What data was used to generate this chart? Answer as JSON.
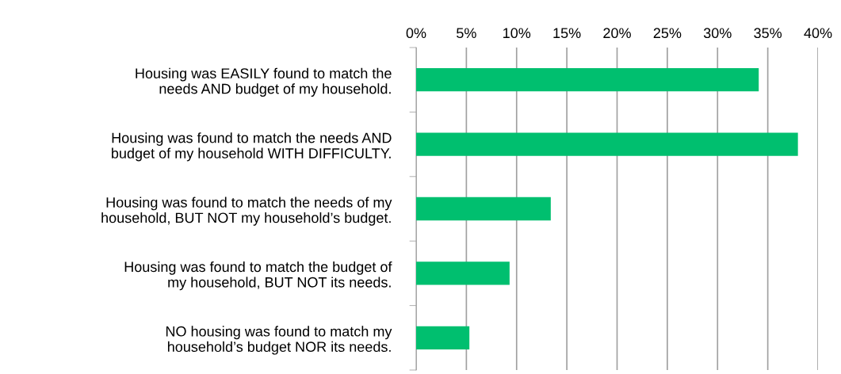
{
  "chart_data": {
    "type": "bar",
    "orientation": "horizontal",
    "categories": [
      "Housing was EASILY found to match the\nneeds AND budget of my household.",
      "Housing was found to match the needs AND\nbudget of my household WITH DIFFICULTY.",
      "Housing was found to match the needs of my\nhousehold, BUT NOT my household’s budget.",
      "Housing was found to match the budget of\nmy household, BUT NOT its needs.",
      "NO housing was found to match my\nhousehold’s budget NOR its needs."
    ],
    "values": [
      34.1,
      38.0,
      13.4,
      9.3,
      5.3
    ],
    "color": "#00bf6f",
    "xlim": [
      0,
      40
    ],
    "xticks": [
      {
        "value": 0,
        "label": "0%"
      },
      {
        "value": 5,
        "label": "5%"
      },
      {
        "value": 10,
        "label": "10%"
      },
      {
        "value": 15,
        "label": "15%"
      },
      {
        "value": 20,
        "label": "20%"
      },
      {
        "value": 25,
        "label": "25%"
      },
      {
        "value": 30,
        "label": "30%"
      },
      {
        "value": 35,
        "label": "35%"
      },
      {
        "value": 40,
        "label": "40%"
      }
    ],
    "grid": "x"
  }
}
